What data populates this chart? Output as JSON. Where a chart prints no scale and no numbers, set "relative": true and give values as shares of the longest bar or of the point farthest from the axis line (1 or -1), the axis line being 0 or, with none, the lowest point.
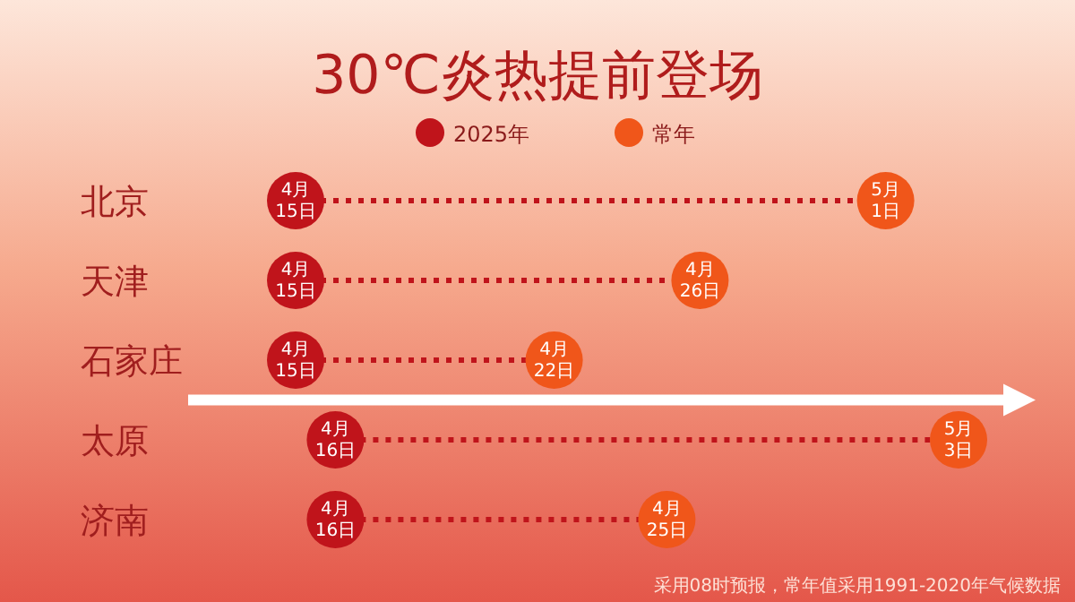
{
  "chart_data": {
    "type": "scatter",
    "title": "30℃炎热提前登场",
    "orientation": "horizontal",
    "relative": true,
    "categories": [
      "北京",
      "天津",
      "石家庄",
      "太原",
      "济南"
    ],
    "series": [
      {
        "name": "2025年",
        "color": "#c0141b",
        "values": [
          0,
          0,
          0,
          0.06,
          0.06
        ]
      },
      {
        "name": "常年",
        "color": "#f0561a",
        "values": [
          0.89,
          0.61,
          0.39,
          1,
          0.56
        ]
      }
    ],
    "marker": "circle",
    "line_style": "dotted",
    "legend": "top",
    "tick_labels": "y",
    "annotations": [
      {
        "text": "4月15日",
        "x": 0,
        "y": "北京"
      },
      {
        "text": "5月1日",
        "x": 0.89,
        "y": "北京"
      },
      {
        "text": "4月15日",
        "x": 0,
        "y": "天津"
      },
      {
        "text": "4月26日",
        "x": 0.61,
        "y": "天津"
      },
      {
        "text": "4月15日",
        "x": 0,
        "y": "石家庄"
      },
      {
        "text": "4月22日",
        "x": 0.39,
        "y": "石家庄"
      },
      {
        "text": "4月16日",
        "x": 0.06,
        "y": "太原"
      },
      {
        "text": "5月3日",
        "x": 1,
        "y": "太原"
      },
      {
        "text": "4月16日",
        "x": 0.06,
        "y": "济南"
      },
      {
        "text": "4月25日",
        "x": 0.56,
        "y": "济南"
      },
      "采用08时预报，常年值采用1991-2020年气候数据"
    ]
  }
}
